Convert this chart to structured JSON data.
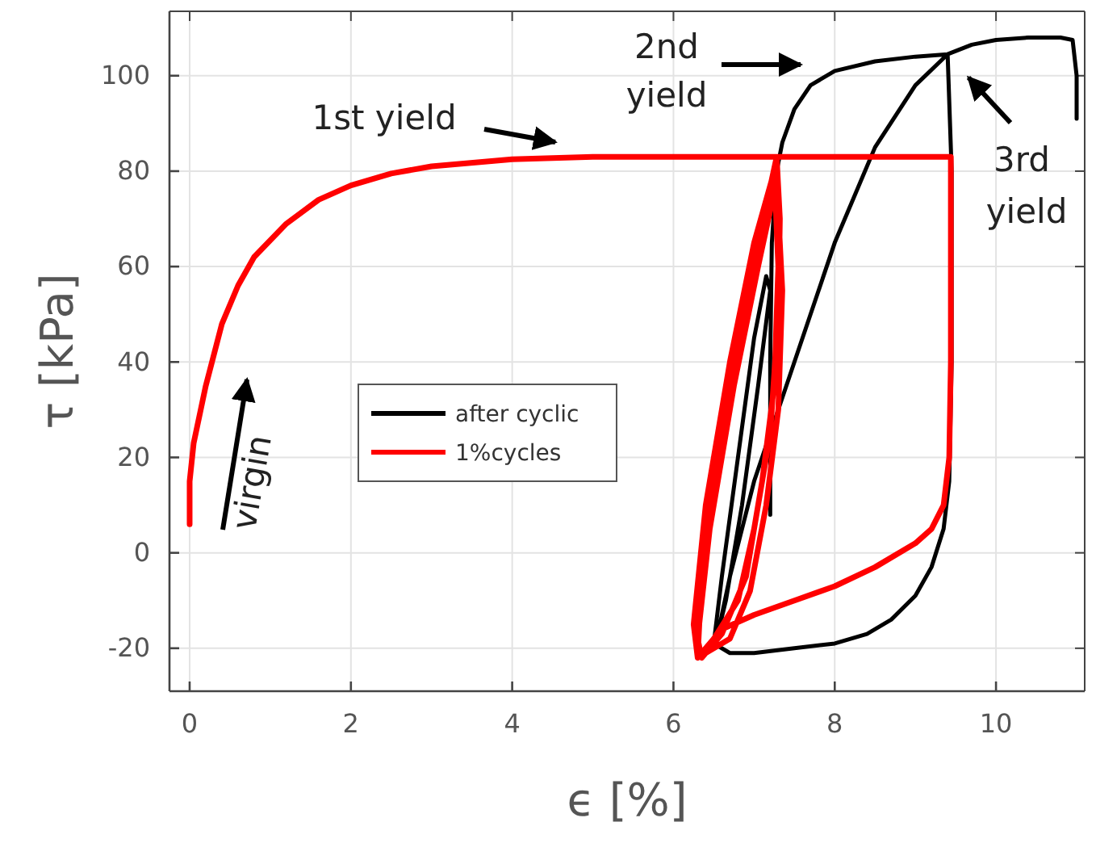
{
  "chart_data": {
    "type": "line",
    "xlabel": "ϵ [%]",
    "ylabel": "τ [kPa]",
    "xlim": [
      -0.25,
      11.1
    ],
    "ylim": [
      -29,
      113.5
    ],
    "xticks": [
      0,
      2,
      4,
      6,
      8,
      10
    ],
    "yticks": [
      -20,
      0,
      20,
      40,
      60,
      80,
      100
    ],
    "grid": true,
    "legend": "left",
    "line_style": "solid",
    "marker": "none",
    "series": [
      {
        "name": "after cyclic",
        "color": "#000000",
        "x": [
          7.2,
          7.2,
          7.22,
          7.28,
          7.35,
          7.5,
          7.7,
          8,
          8.5,
          9,
          9.4,
          9.45,
          9.45,
          9.42,
          9.35,
          9.2,
          9,
          8.7,
          8.4,
          8,
          7.5,
          7,
          6.7,
          6.5,
          6.6,
          6.8,
          7,
          7.15,
          7.2,
          7.05,
          6.85,
          6.65,
          6.55,
          6.7,
          7,
          7.5,
          8,
          8.5,
          9,
          9.4,
          9.7,
          10,
          10.4,
          10.8,
          10.95,
          11,
          11
        ],
        "values": [
          8,
          40,
          65,
          80,
          86,
          93,
          98,
          101,
          103,
          104,
          104.5,
          80,
          40,
          15,
          5,
          -3,
          -9,
          -14,
          -17,
          -19,
          -20,
          -21,
          -21,
          -19,
          -5,
          20,
          45,
          58,
          55,
          35,
          10,
          -10,
          -17,
          -5,
          15,
          40,
          65,
          85,
          98,
          104.5,
          106.5,
          107.5,
          108,
          108,
          107.5,
          100,
          91
        ]
      },
      {
        "name": "1%cycles",
        "color": "#ff0000",
        "x": [
          0,
          0,
          0.05,
          0.2,
          0.4,
          0.6,
          0.8,
          1.2,
          1.6,
          2,
          2.5,
          3,
          4,
          5,
          6,
          7,
          8,
          9,
          9.44,
          9.44,
          9.42,
          9.35,
          9.2,
          9,
          8.5,
          8,
          7.5,
          7,
          6.6,
          6.4,
          6.3,
          6.35,
          6.5,
          6.8,
          7.05,
          7.28,
          7.32,
          7.3,
          7.2,
          7,
          6.8,
          6.5,
          6.3,
          6.25,
          6.4,
          6.7,
          7,
          7.25,
          7.3,
          7.25,
          7.1,
          6.9,
          6.6,
          6.35,
          6.3,
          6.45,
          6.75,
          7.05,
          7.28,
          7.35,
          7.3,
          7.15,
          6.95,
          6.7,
          6.4
        ],
        "values": [
          6,
          15,
          23,
          35,
          48,
          56,
          62,
          69,
          74,
          77,
          79.5,
          81,
          82.5,
          83,
          83,
          83,
          83,
          83,
          83,
          40,
          20,
          10,
          5,
          2,
          -3,
          -7,
          -10,
          -13,
          -16,
          -20,
          -22,
          -5,
          15,
          45,
          65,
          83,
          70,
          50,
          25,
          5,
          -10,
          -18,
          -22,
          -15,
          10,
          40,
          65,
          80,
          60,
          35,
          15,
          -5,
          -17,
          -22,
          -18,
          5,
          35,
          60,
          78,
          55,
          30,
          10,
          -8,
          -18,
          -21
        ]
      }
    ],
    "annotations": [
      "1st yield",
      "2nd yield",
      "3rd yield",
      "virgin"
    ]
  }
}
